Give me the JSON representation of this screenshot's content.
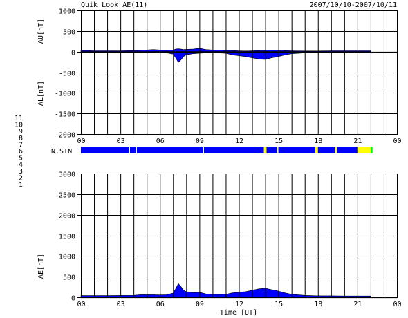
{
  "header": {
    "title": "Quik Look AE(11)",
    "date_range": "2007/10/10-2007/10/11"
  },
  "colors": {
    "fill": "#0000ff",
    "station_bar": "#0000ff",
    "station_dip": "#ffff00",
    "station_end": "#00cc00",
    "grid": "#000000"
  },
  "station_legend": [
    {
      "label": "11",
      "color": "#00ffff"
    },
    {
      "label": "10",
      "color": "#ff00ff"
    },
    {
      "label": "9",
      "color": "#0000ff"
    },
    {
      "label": "8",
      "color": "#ffff00"
    },
    {
      "label": "7",
      "color": "#00ff00"
    },
    {
      "label": "6",
      "color": "#ff0000"
    },
    {
      "label": "5",
      "color": "#ffffff"
    },
    {
      "label": "4",
      "color": "#c0c0c0"
    },
    {
      "label": "3",
      "color": "#008080"
    },
    {
      "label": "2",
      "color": "#800080"
    },
    {
      "label": "1",
      "color": "#000080"
    }
  ],
  "chart_data": [
    {
      "type": "area",
      "panel": "AU/AL",
      "ylabel_top": "AU[nT]",
      "ylabel_bottom": "AL[nT]",
      "xlabel": "",
      "xlim": [
        0,
        24
      ],
      "ylim": [
        -2000,
        1000
      ],
      "y_ticks": [
        1000,
        500,
        0,
        -500,
        -1000,
        -1500,
        -2000
      ],
      "x_tick_labels": [
        "00",
        "03",
        "06",
        "09",
        "12",
        "15",
        "18",
        "21",
        "00"
      ],
      "grid": true,
      "series": [
        {
          "x": [
            0,
            0.5,
            1,
            2,
            3,
            4,
            4.5,
            5,
            5.5,
            6,
            6.5,
            7,
            7.2,
            7.4,
            7.6,
            7.8,
            8,
            8.5,
            9,
            9.5,
            10,
            11,
            11.5,
            12,
            12.5,
            13,
            13.5,
            14,
            14.5,
            15,
            15.5,
            16,
            17,
            18,
            19,
            20,
            21,
            22
          ],
          "values": [
            30,
            25,
            20,
            20,
            18,
            25,
            30,
            40,
            50,
            40,
            30,
            40,
            60,
            70,
            60,
            50,
            55,
            60,
            80,
            50,
            40,
            30,
            25,
            20,
            15,
            20,
            25,
            30,
            35,
            30,
            25,
            20,
            15,
            15,
            20,
            20,
            20,
            20
          ]
        },
        {
          "x": [
            0,
            0.5,
            1,
            2,
            3,
            4,
            4.5,
            5,
            5.5,
            6,
            6.5,
            7,
            7.2,
            7.4,
            7.6,
            7.8,
            8,
            8.5,
            9,
            9.5,
            10,
            11,
            11.5,
            12,
            12.5,
            13,
            13.5,
            14,
            14.5,
            15,
            15.5,
            16,
            17,
            18,
            19,
            20,
            21,
            22
          ],
          "values": [
            -10,
            -15,
            -20,
            -20,
            -25,
            -20,
            -30,
            -20,
            -10,
            -15,
            -30,
            -60,
            -150,
            -260,
            -200,
            -120,
            -80,
            -50,
            -40,
            -30,
            -25,
            -40,
            -80,
            -100,
            -120,
            -150,
            -180,
            -190,
            -150,
            -120,
            -80,
            -50,
            -30,
            -20,
            -15,
            -10,
            -10,
            -10
          ]
        }
      ]
    },
    {
      "type": "bar",
      "label": "N.STN",
      "segments": [
        {
          "start": 0,
          "end": 13.9,
          "station": "9"
        },
        {
          "start": 13.9,
          "end": 14.1,
          "station": "8"
        },
        {
          "start": 14.1,
          "end": 14.9,
          "station": "9"
        },
        {
          "start": 14.9,
          "end": 15.0,
          "station": "8"
        },
        {
          "start": 15.0,
          "end": 17.8,
          "station": "9"
        },
        {
          "start": 17.8,
          "end": 18.0,
          "station": "8"
        },
        {
          "start": 18.0,
          "end": 19.3,
          "station": "9"
        },
        {
          "start": 19.3,
          "end": 19.45,
          "station": "8"
        },
        {
          "start": 19.45,
          "end": 21.0,
          "station": "9"
        },
        {
          "start": 21.0,
          "end": 22.0,
          "station": "8"
        },
        {
          "start": 22.0,
          "end": 22.15,
          "station": "7"
        }
      ]
    },
    {
      "type": "area",
      "panel": "AE",
      "ylabel": "AE[nT]",
      "xlabel": "Time [UT]",
      "xlim": [
        0,
        24
      ],
      "ylim": [
        0,
        3000
      ],
      "y_ticks": [
        3000,
        2500,
        2000,
        1500,
        1000,
        500,
        0
      ],
      "x_tick_labels": [
        "00",
        "03",
        "06",
        "09",
        "12",
        "15",
        "18",
        "21",
        "00"
      ],
      "grid": true,
      "series": [
        {
          "x": [
            0,
            0.5,
            1,
            2,
            3,
            4,
            4.5,
            5,
            5.5,
            6,
            6.5,
            7,
            7.2,
            7.4,
            7.6,
            7.8,
            8,
            8.5,
            9,
            9.5,
            10,
            11,
            11.5,
            12,
            12.5,
            13,
            13.5,
            14,
            14.5,
            15,
            15.5,
            16,
            17,
            18,
            19,
            20,
            21,
            22
          ],
          "values": [
            40,
            40,
            40,
            40,
            43,
            45,
            60,
            60,
            60,
            55,
            60,
            100,
            210,
            330,
            260,
            170,
            135,
            110,
            120,
            80,
            65,
            70,
            105,
            120,
            135,
            170,
            205,
            220,
            185,
            150,
            105,
            70,
            45,
            35,
            35,
            30,
            30,
            30
          ]
        }
      ]
    }
  ]
}
